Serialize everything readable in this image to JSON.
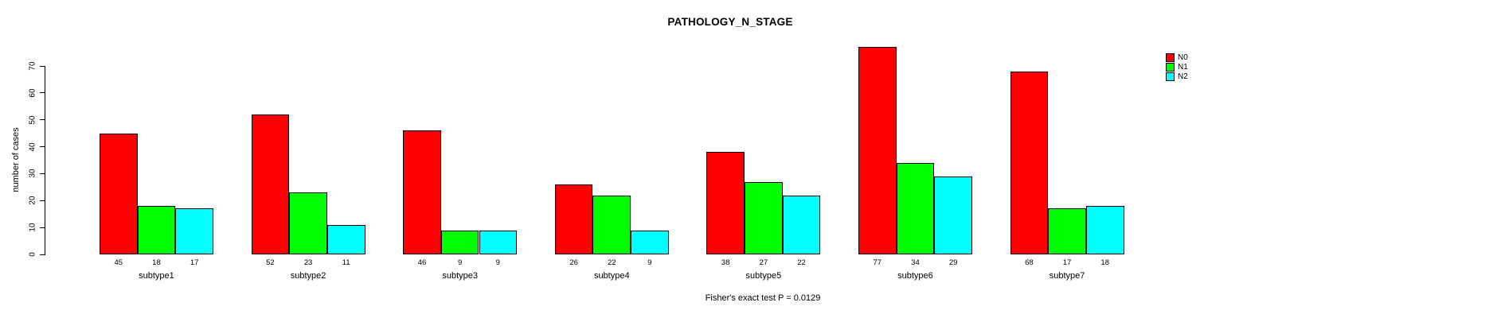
{
  "chart_data": {
    "type": "bar",
    "title": "PATHOLOGY_N_STAGE",
    "ylabel": "number of cases",
    "xlabel": "",
    "categories": [
      "subtype1",
      "subtype2",
      "subtype3",
      "subtype4",
      "subtype5",
      "subtype6",
      "subtype7"
    ],
    "series": [
      {
        "name": "N0",
        "color": "#FF0000",
        "values": [
          45,
          52,
          46,
          26,
          38,
          77,
          68
        ]
      },
      {
        "name": "N1",
        "color": "#00FF00",
        "values": [
          18,
          23,
          9,
          22,
          27,
          34,
          17
        ]
      },
      {
        "name": "N2",
        "color": "#00FFFF",
        "values": [
          17,
          11,
          9,
          9,
          22,
          29,
          18
        ]
      }
    ],
    "value_labels_shown": true,
    "yticks": [
      0,
      10,
      20,
      30,
      40,
      50,
      60,
      70
    ],
    "ylim": [
      0,
      77
    ],
    "grid": false,
    "legend_position": "topright",
    "bar_border_color": "#000000",
    "footnote": "Fisher's exact test P = 0.0129"
  }
}
